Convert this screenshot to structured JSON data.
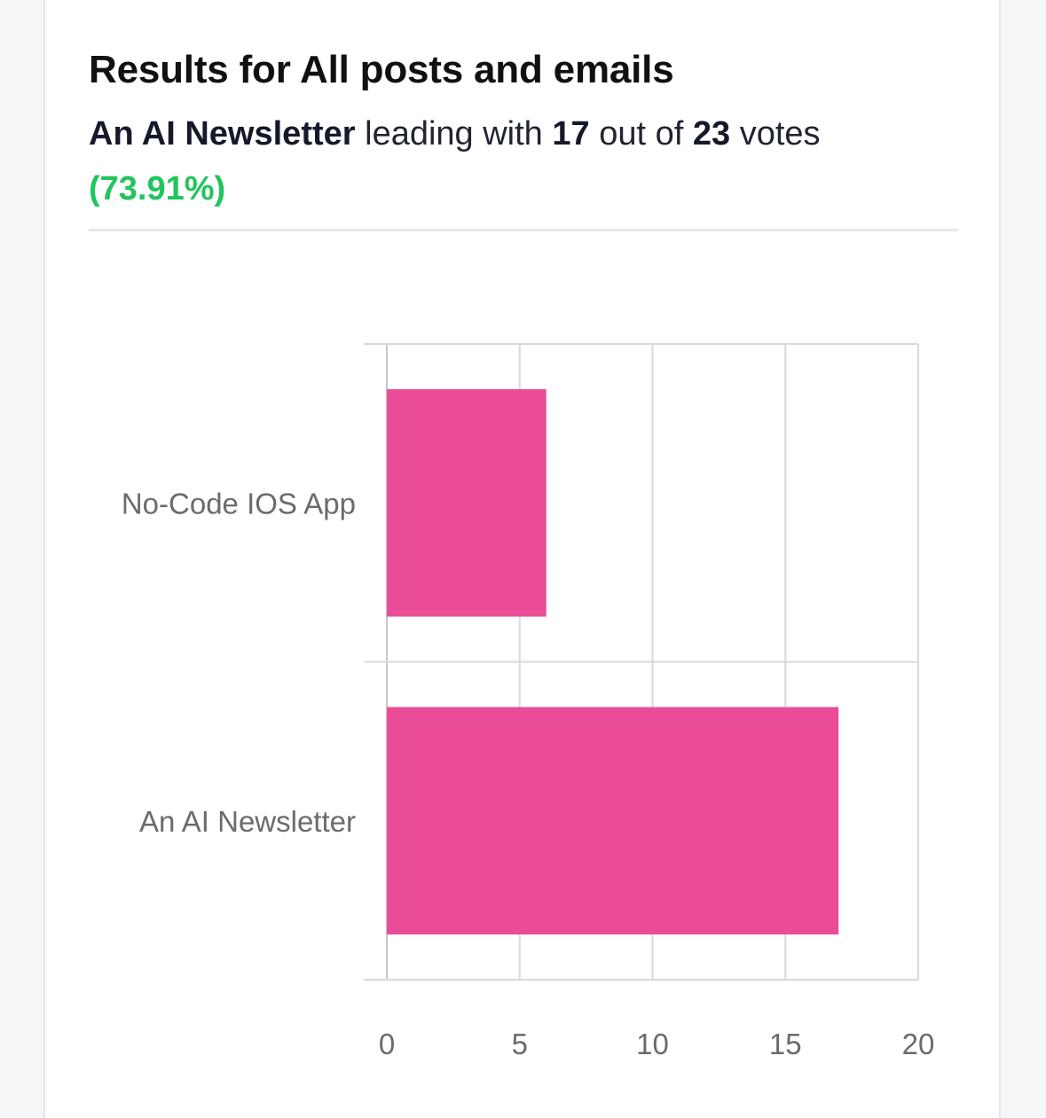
{
  "header": {
    "title": "Results for All posts and emails",
    "leader_name": "An AI Newsletter",
    "leading_with": "leading with",
    "leader_votes": "17",
    "out_of": "out of",
    "total_votes": "23",
    "votes_word": "votes",
    "leader_percent": "(73.91%)"
  },
  "colors": {
    "bar": "#ea4c98",
    "percent": "#22c55e",
    "grid": "#d9d9d9"
  },
  "chart_data": {
    "type": "bar",
    "orientation": "horizontal",
    "categories": [
      "No-Code IOS App",
      "An AI Newsletter"
    ],
    "values": [
      6,
      17
    ],
    "xlim": [
      0,
      20
    ],
    "xticks": [
      "0",
      "5",
      "10",
      "15",
      "20"
    ],
    "grid": true,
    "title": "",
    "xlabel": "",
    "ylabel": ""
  }
}
